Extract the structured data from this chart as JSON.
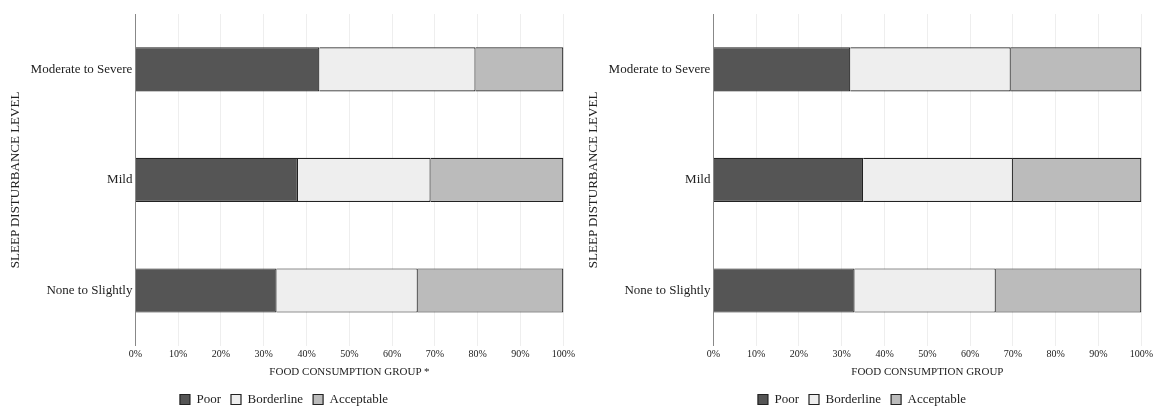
{
  "chart_data": [
    {
      "type": "bar",
      "orientation": "horizontal",
      "stacked": true,
      "xlabel": "FOOD CONSUMPTION GROUP *",
      "ylabel": "SLEEP DISTURBANCE LEVEL",
      "categories": [
        "Moderate to Severe",
        "Mild",
        "None to Slightly"
      ],
      "series": [
        {
          "name": "Poor",
          "color": "#555555",
          "values": [
            43,
            38,
            33
          ]
        },
        {
          "name": "Borderline",
          "color": "#eeeeee",
          "values": [
            36.5,
            31,
            33
          ]
        },
        {
          "name": "Acceptable",
          "color": "#bbbbbb",
          "values": [
            20.5,
            31,
            34
          ]
        }
      ],
      "xlim": [
        0,
        100
      ],
      "xticks": [
        {
          "value": 0,
          "label": "0%"
        },
        {
          "value": 10,
          "label": "10%"
        },
        {
          "value": 20,
          "label": "20%"
        },
        {
          "value": 30,
          "label": "30%"
        },
        {
          "value": 40,
          "label": "40%"
        },
        {
          "value": 50,
          "label": "50%"
        },
        {
          "value": 60,
          "label": "60%"
        },
        {
          "value": 70,
          "label": "70%"
        },
        {
          "value": 80,
          "label": "80%"
        },
        {
          "value": 90,
          "label": "90%"
        },
        {
          "value": 100,
          "label": "100%"
        }
      ],
      "grid": "x",
      "legend": "bottom"
    },
    {
      "type": "bar",
      "orientation": "horizontal",
      "stacked": true,
      "xlabel": "FOOD CONSUMPTION GROUP",
      "ylabel": "SLEEP DISTURBANCE LEVEL",
      "categories": [
        "Moderate to Severe",
        "Mild",
        "None to Slightly"
      ],
      "series": [
        {
          "name": "Poor",
          "color": "#555555",
          "values": [
            32,
            35,
            33
          ]
        },
        {
          "name": "Borderline",
          "color": "#eeeeee",
          "values": [
            37.5,
            35,
            33
          ]
        },
        {
          "name": "Acceptable",
          "color": "#bbbbbb",
          "values": [
            30.5,
            30,
            34
          ]
        }
      ],
      "xlim": [
        0,
        100
      ],
      "xticks": [
        {
          "value": 0,
          "label": "0%"
        },
        {
          "value": 10,
          "label": "10%"
        },
        {
          "value": 20,
          "label": "20%"
        },
        {
          "value": 30,
          "label": "30%"
        },
        {
          "value": 40,
          "label": "40%"
        },
        {
          "value": 50,
          "label": "50%"
        },
        {
          "value": 60,
          "label": "60%"
        },
        {
          "value": 70,
          "label": "70%"
        },
        {
          "value": 80,
          "label": "80%"
        },
        {
          "value": 90,
          "label": "90%"
        },
        {
          "value": 100,
          "label": "100%"
        }
      ],
      "grid": "x",
      "legend": "bottom"
    }
  ]
}
